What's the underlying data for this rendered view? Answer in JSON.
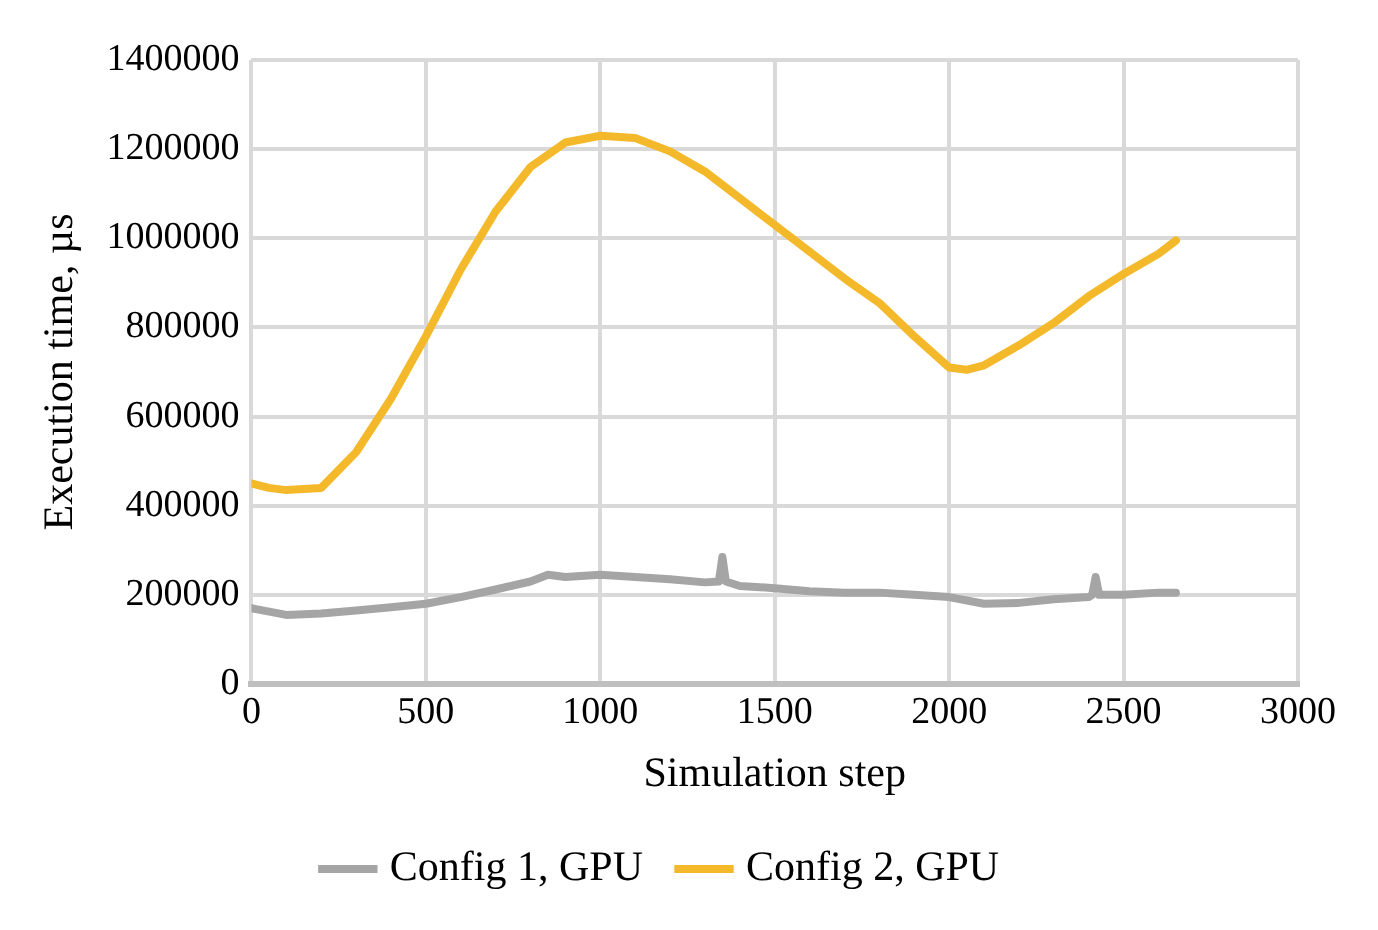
{
  "chart_data": {
    "type": "line",
    "xlabel": "Simulation step",
    "ylabel": "Execution time, µs",
    "xlim": [
      0,
      3000
    ],
    "xticks": [
      0,
      500,
      1000,
      1500,
      2000,
      2500,
      3000
    ],
    "ylim": [
      0,
      1400000
    ],
    "yticks": [
      0,
      200000,
      400000,
      600000,
      800000,
      1000000,
      1200000,
      1400000
    ],
    "grid": true,
    "legend": "bottom",
    "marker": "none",
    "line_style": "solid",
    "series": [
      {
        "name": "Config 1, GPU",
        "color": "#a5a5a5",
        "x": [
          0,
          100,
          200,
          300,
          400,
          500,
          600,
          700,
          800,
          850,
          900,
          1000,
          1100,
          1200,
          1300,
          1340,
          1350,
          1360,
          1400,
          1500,
          1600,
          1700,
          1800,
          1900,
          2000,
          2100,
          2200,
          2300,
          2400,
          2410,
          2420,
          2430,
          2500,
          2600,
          2650
        ],
        "values": [
          170000,
          155000,
          158000,
          165000,
          172000,
          180000,
          195000,
          212000,
          230000,
          245000,
          240000,
          245000,
          240000,
          235000,
          228000,
          230000,
          285000,
          230000,
          220000,
          215000,
          208000,
          205000,
          205000,
          200000,
          195000,
          180000,
          182000,
          190000,
          195000,
          200000,
          240000,
          200000,
          200000,
          205000,
          205000
        ]
      },
      {
        "name": "Config 2, GPU",
        "color": "#f4b92b",
        "x": [
          0,
          50,
          100,
          200,
          300,
          400,
          500,
          600,
          700,
          800,
          900,
          1000,
          1100,
          1200,
          1300,
          1400,
          1500,
          1600,
          1700,
          1800,
          1900,
          2000,
          2050,
          2100,
          2200,
          2300,
          2400,
          2500,
          2600,
          2650
        ],
        "values": [
          450000,
          440000,
          435000,
          440000,
          520000,
          640000,
          780000,
          930000,
          1060000,
          1160000,
          1215000,
          1230000,
          1225000,
          1195000,
          1150000,
          1090000,
          1030000,
          970000,
          910000,
          855000,
          780000,
          710000,
          705000,
          715000,
          760000,
          810000,
          870000,
          920000,
          965000,
          995000
        ]
      }
    ]
  }
}
